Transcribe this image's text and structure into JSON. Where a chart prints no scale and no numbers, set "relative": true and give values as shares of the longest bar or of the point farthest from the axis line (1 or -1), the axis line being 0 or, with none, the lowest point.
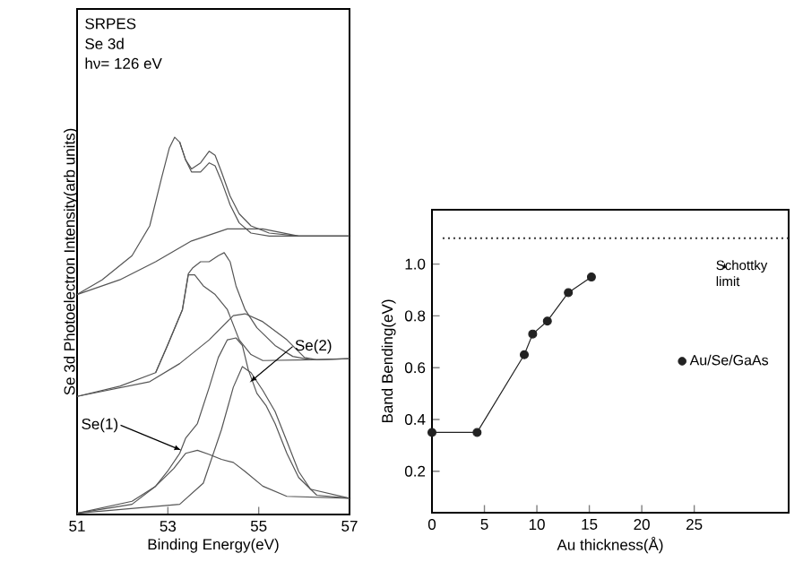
{
  "chart_data": [
    {
      "type": "line",
      "relative": true,
      "xlabel": "Binding Energy(eV)",
      "ylabel": "Se 3d Photoelectron Intensity(arb units)",
      "xlim": [
        51,
        57
      ],
      "xticks": [
        51,
        53,
        55,
        57
      ],
      "marker": "none",
      "line_style": "solid",
      "grid": false,
      "legend": false,
      "annotations": [
        "SRPES",
        "Se 3d",
        "hν= 126 eV",
        {
          "text": "Se(1)",
          "x": 53.3,
          "y": 0.17
        },
        {
          "text": "Se(2)",
          "x": 54.8,
          "y": 0.35
        }
      ],
      "series": [
        {
          "color": "#555555",
          "x": [
            51.0,
            51.55,
            52.21,
            52.6,
            52.86,
            53.03,
            53.15,
            53.26,
            53.39,
            53.52,
            53.72,
            53.91,
            54.04,
            54.18,
            54.37,
            54.57,
            54.83,
            55.23,
            55.88,
            57.0
          ],
          "values": [
            0.583,
            0.622,
            0.686,
            0.765,
            0.892,
            0.971,
            1.0,
            0.987,
            0.94,
            0.916,
            0.932,
            0.963,
            0.952,
            0.908,
            0.844,
            0.797,
            0.765,
            0.746,
            0.738,
            0.738
          ]
        },
        {
          "color": "#555555",
          "x": [
            53.26,
            53.39,
            53.52,
            53.72,
            53.91,
            54.04,
            54.18,
            54.37,
            54.57,
            54.83,
            55.23,
            57.0
          ],
          "values": [
            0.987,
            0.94,
            0.908,
            0.908,
            0.932,
            0.924,
            0.884,
            0.821,
            0.773,
            0.746,
            0.738,
            0.738
          ]
        },
        {
          "color": "#555555",
          "x": [
            51.0,
            51.94,
            52.73,
            53.52,
            54.31,
            55.09,
            55.88,
            57.0
          ],
          "values": [
            0.583,
            0.622,
            0.67,
            0.725,
            0.757,
            0.757,
            0.738,
            0.738
          ]
        },
        {
          "color": "#555555",
          "x": [
            51.0,
            51.94,
            52.73,
            52.99,
            53.32,
            53.45,
            53.55,
            53.72,
            53.91,
            54.11,
            54.24,
            54.37,
            54.5,
            54.7,
            54.96,
            55.36,
            55.75,
            56.14,
            57.0
          ],
          "values": [
            0.313,
            0.34,
            0.376,
            0.448,
            0.543,
            0.638,
            0.654,
            0.67,
            0.67,
            0.686,
            0.694,
            0.67,
            0.606,
            0.543,
            0.495,
            0.448,
            0.419,
            0.41,
            0.413
          ]
        },
        {
          "color": "#555555",
          "x": [
            52.73,
            52.99,
            53.32,
            53.45,
            53.59,
            53.78,
            54.04,
            54.31,
            54.57,
            54.83,
            55.09,
            56.14
          ],
          "values": [
            0.376,
            0.448,
            0.543,
            0.635,
            0.635,
            0.606,
            0.583,
            0.543,
            0.463,
            0.424,
            0.408,
            0.41
          ]
        },
        {
          "color": "#555555",
          "x": [
            51.0,
            52.6,
            53.26,
            53.91,
            54.44,
            54.7,
            55.09,
            55.62,
            56.01,
            56.28,
            57.0
          ],
          "values": [
            0.313,
            0.352,
            0.4,
            0.463,
            0.527,
            0.532,
            0.511,
            0.463,
            0.416,
            0.41,
            0.413
          ]
        },
        {
          "color": "#555555",
          "x": [
            51.0,
            52.21,
            52.73,
            52.99,
            53.26,
            53.39,
            53.65,
            53.91,
            54.11,
            54.31,
            54.5,
            54.64,
            54.77,
            54.96,
            55.16,
            55.36,
            55.62,
            55.88,
            56.28,
            57.0
          ],
          "values": [
            0.003,
            0.035,
            0.075,
            0.114,
            0.162,
            0.202,
            0.241,
            0.337,
            0.416,
            0.463,
            0.468,
            0.448,
            0.384,
            0.321,
            0.289,
            0.241,
            0.162,
            0.098,
            0.051,
            0.043
          ]
        },
        {
          "color": "#555555",
          "x": [
            51.0,
            53.26,
            53.78,
            54.18,
            54.44,
            54.64,
            54.83,
            55.09,
            55.36,
            55.62,
            55.88,
            56.14,
            57.0
          ],
          "values": [
            0.003,
            0.027,
            0.083,
            0.225,
            0.337,
            0.392,
            0.376,
            0.329,
            0.273,
            0.194,
            0.114,
            0.067,
            0.043
          ]
        },
        {
          "color": "#555555",
          "x": [
            51.0,
            52.21,
            52.73,
            53.13,
            53.39,
            53.65,
            53.91,
            54.18,
            54.44,
            54.7,
            55.09,
            55.62,
            57.0
          ],
          "values": [
            0.003,
            0.027,
            0.075,
            0.122,
            0.162,
            0.17,
            0.159,
            0.146,
            0.138,
            0.114,
            0.075,
            0.048,
            0.043
          ]
        }
      ]
    },
    {
      "type": "line",
      "xlabel": "Au thickness(Å)",
      "ylabel": "Band Bending(eV)",
      "xlim": [
        0,
        34
      ],
      "ylim": [
        0.04,
        1.21
      ],
      "xticks": [
        0,
        5,
        10,
        15,
        20,
        25
      ],
      "yticks": [
        0.2,
        0.4,
        0.6,
        0.8,
        {
          "value": 1.0,
          "label": "1.0"
        }
      ],
      "marker": "circle",
      "line_style": "solid",
      "grid": false,
      "legend": "right",
      "ref_lines": [
        {
          "axis": "y",
          "value": 1.1,
          "label": "Schottky limit",
          "line_style": "dotted",
          "color": "#333333"
        }
      ],
      "x": [
        0,
        4.3,
        8.8,
        9.6,
        11,
        13,
        15.2
      ],
      "series": [
        {
          "name": "Au/Se/GaAs",
          "color": "#222222",
          "values": [
            0.35,
            0.35,
            0.65,
            0.73,
            0.78,
            0.89,
            0.95
          ]
        }
      ]
    }
  ]
}
